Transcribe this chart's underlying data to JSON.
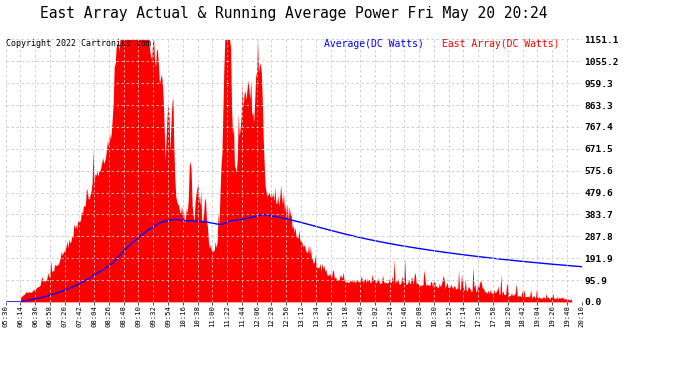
{
  "title": "East Array Actual & Running Average Power Fri May 20 20:24",
  "copyright": "Copyright 2022 Cartronics.com",
  "legend_average": "Average(DC Watts)",
  "legend_east": "East Array(DC Watts)",
  "ylabel_right_ticks": [
    0.0,
    95.9,
    191.9,
    287.8,
    383.7,
    479.6,
    575.6,
    671.5,
    767.4,
    863.3,
    959.3,
    1055.2,
    1151.1
  ],
  "ymax": 1151.1,
  "ymin": 0.0,
  "background_color": "#ffffff",
  "grid_color": "#c8c8c8",
  "red_color": "#ff0000",
  "blue_color": "#0000ff",
  "title_color": "#000000",
  "copyright_color": "#000000",
  "avg_label_color": "#0000ff",
  "east_label_color": "#ff0000",
  "x_labels": [
    "05:30",
    "06:14",
    "06:36",
    "06:58",
    "07:20",
    "07:42",
    "08:04",
    "08:26",
    "08:48",
    "09:10",
    "09:32",
    "09:54",
    "10:16",
    "10:38",
    "11:00",
    "11:22",
    "11:44",
    "12:06",
    "12:28",
    "12:50",
    "13:12",
    "13:34",
    "13:56",
    "14:18",
    "14:40",
    "15:02",
    "15:24",
    "15:46",
    "16:08",
    "16:30",
    "16:52",
    "17:14",
    "17:36",
    "17:58",
    "18:20",
    "18:42",
    "19:04",
    "19:26",
    "19:48",
    "20:10"
  ]
}
